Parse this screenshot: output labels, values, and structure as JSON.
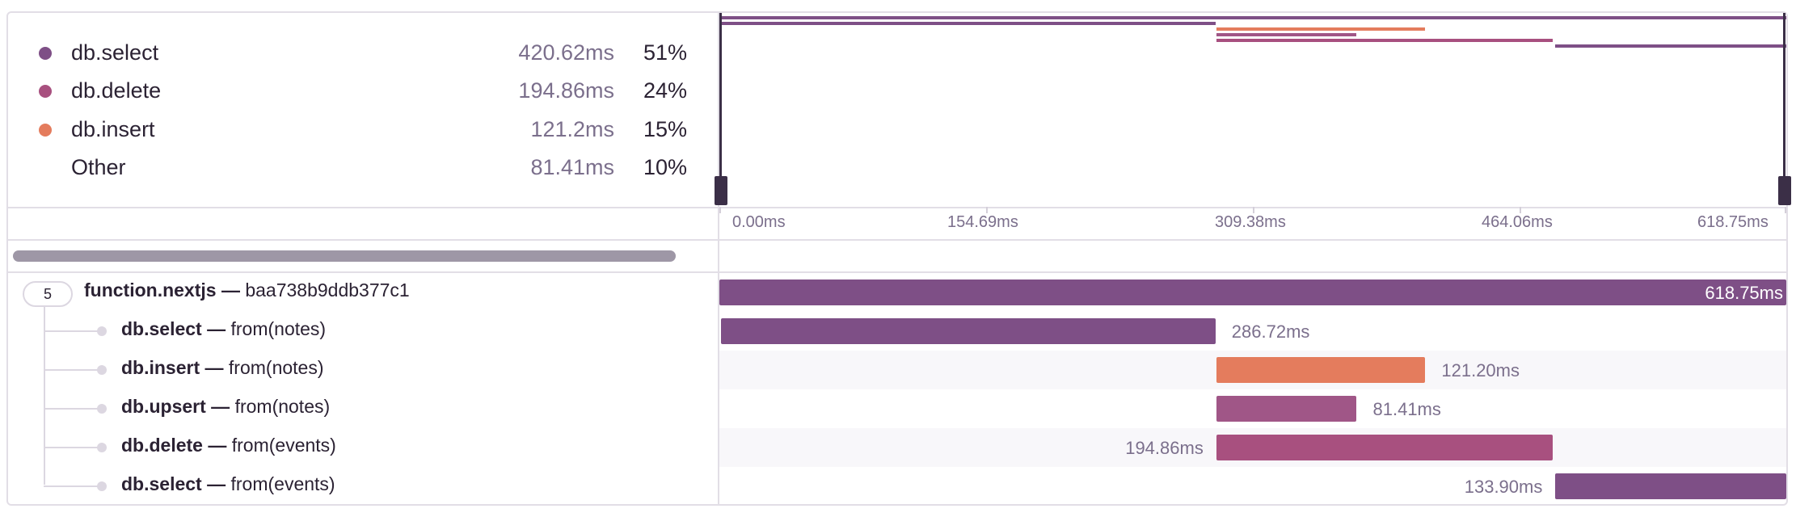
{
  "legend": [
    {
      "name": "db.select",
      "duration": "420.62ms",
      "percent": "51%",
      "color": "#7e4f86"
    },
    {
      "name": "db.delete",
      "duration": "194.86ms",
      "percent": "24%",
      "color": "#a8507f"
    },
    {
      "name": "db.insert",
      "duration": "121.2ms",
      "percent": "15%",
      "color": "#e47c5d"
    },
    {
      "name": "Other",
      "duration": "81.41ms",
      "percent": "10%",
      "color": ""
    }
  ],
  "timeline": {
    "total_ms": 618.75,
    "ticks": [
      "0.00ms",
      "154.69ms",
      "309.38ms",
      "464.06ms",
      "618.75ms"
    ]
  },
  "root": {
    "child_count": "5",
    "op": "function.nextjs —",
    "description": "baa738b9ddb377c1",
    "start_ms": 0,
    "duration_ms": 618.75,
    "duration_label": "618.75ms",
    "color": "#7e4f86"
  },
  "spans": [
    {
      "op": "db.select —",
      "description": "from(notes)",
      "start_ms": 1.0,
      "duration_ms": 286.72,
      "duration_label": "286.72ms",
      "label_side": "right",
      "color": "#7e4f86"
    },
    {
      "op": "db.insert —",
      "description": "from(notes)",
      "start_ms": 288.2,
      "duration_ms": 121.2,
      "duration_label": "121.20ms",
      "label_side": "right",
      "color": "#e47c5d"
    },
    {
      "op": "db.upsert —",
      "description": "from(notes)",
      "start_ms": 288.2,
      "duration_ms": 81.41,
      "duration_label": "81.41ms",
      "label_side": "right",
      "color": "#a05687"
    },
    {
      "op": "db.delete —",
      "description": "from(events)",
      "start_ms": 288.2,
      "duration_ms": 194.86,
      "duration_label": "194.86ms",
      "label_side": "left",
      "color": "#a8507f"
    },
    {
      "op": "db.select —",
      "description": "from(events)",
      "start_ms": 484.85,
      "duration_ms": 133.9,
      "duration_label": "133.90ms",
      "label_side": "left",
      "color": "#7e4f86"
    }
  ]
}
